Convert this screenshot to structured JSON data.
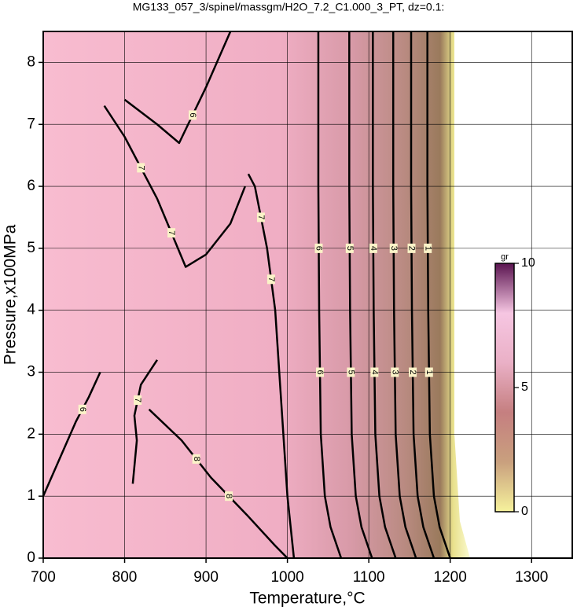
{
  "chart_data": {
    "type": "contour",
    "title": "MG133_057_3/spinel/massgm/H2O_7.2_C1.000_3_PT, dz=0.1:",
    "x_label": "Temperature,°C",
    "y_label": "Pressure,x100MPa",
    "xlim": [
      700,
      1350
    ],
    "ylim": [
      0,
      8.5
    ],
    "xticks": [
      700,
      800,
      900,
      1000,
      1100,
      1200,
      1300
    ],
    "yticks": [
      0,
      1,
      2,
      3,
      4,
      5,
      6,
      7,
      8
    ],
    "grid": true,
    "contours": [
      {
        "level": 6,
        "x": [
          1038,
          1038,
          1039,
          1041,
          1046,
          1053,
          1066
        ],
        "y": [
          8.5,
          6,
          4,
          2,
          1,
          0.5,
          0
        ]
      },
      {
        "level": 5,
        "x": [
          1076,
          1076,
          1077,
          1079,
          1084,
          1091,
          1104
        ],
        "y": [
          8.5,
          6,
          4,
          2,
          1,
          0.5,
          0
        ]
      },
      {
        "level": 4,
        "x": [
          1105,
          1105,
          1106,
          1108,
          1113,
          1120,
          1133
        ],
        "y": [
          8.5,
          6,
          4,
          2,
          1,
          0.5,
          0
        ]
      },
      {
        "level": 3,
        "x": [
          1130,
          1130,
          1131,
          1133,
          1138,
          1145,
          1158
        ],
        "y": [
          8.5,
          6,
          4,
          2,
          1,
          0.5,
          0
        ]
      },
      {
        "level": 2,
        "x": [
          1152,
          1152,
          1153,
          1155,
          1160,
          1167,
          1180
        ],
        "y": [
          8.5,
          6,
          4,
          2,
          1,
          0.5,
          0
        ]
      },
      {
        "level": 1,
        "x": [
          1172,
          1172,
          1173,
          1175,
          1180,
          1187,
          1200
        ],
        "y": [
          8.5,
          6,
          4,
          2,
          1,
          0.5,
          0
        ]
      },
      {
        "level": 7,
        "x": [
          952,
          960,
          975,
          985,
          990,
          995,
          1000,
          1008
        ],
        "y": [
          6.2,
          6.0,
          5.0,
          4.0,
          3.0,
          2.0,
          1.0,
          0
        ]
      },
      {
        "level": 8,
        "x": [
          830,
          870,
          906,
          950,
          985,
          1000
        ],
        "y": [
          2.4,
          1.9,
          1.3,
          0.7,
          0.2,
          0
        ]
      },
      {
        "level": 6,
        "x": [
          800,
          840,
          867,
          900,
          930
        ],
        "y": [
          7.4,
          7.0,
          6.7,
          7.6,
          8.5
        ]
      },
      {
        "level": 7,
        "x": [
          775,
          800,
          840,
          875,
          900,
          930,
          948
        ],
        "y": [
          7.3,
          6.8,
          5.8,
          4.7,
          4.9,
          5.4,
          6.0
        ]
      },
      {
        "level": 6,
        "x": [
          700,
          720,
          740,
          756,
          770
        ],
        "y": [
          1.0,
          1.6,
          2.2,
          2.6,
          3.0
        ]
      },
      {
        "level": 7,
        "x": [
          810,
          815,
          812,
          820,
          840
        ],
        "y": [
          1.2,
          1.9,
          2.3,
          2.8,
          3.2
        ]
      }
    ],
    "colorbar": {
      "label": "gr",
      "clim": [
        0,
        10
      ],
      "ticks": [
        0,
        5,
        10
      ],
      "colors": [
        "#f6f29c",
        "#c9a07e",
        "#c57f80",
        "#eab0c6",
        "#f6c6e2",
        "#5a1450"
      ]
    }
  }
}
